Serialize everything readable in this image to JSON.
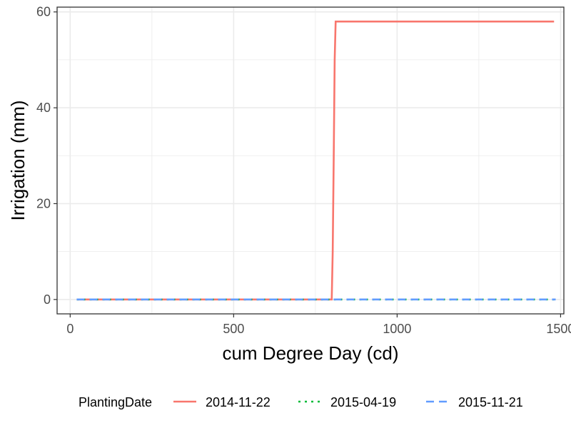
{
  "chart_data": {
    "type": "line",
    "title": "",
    "xlabel": "cum Degree Day (cd)",
    "ylabel": "Irrigation (mm)",
    "xlim": [
      -40,
      1510
    ],
    "ylim": [
      -3,
      61
    ],
    "x_ticks": [
      0,
      500,
      1000,
      1500
    ],
    "y_ticks": [
      0,
      20,
      40,
      60
    ],
    "grid": true,
    "legend": {
      "title": "PlantingDate",
      "position": "bottom"
    },
    "series": [
      {
        "name": "2014-11-22",
        "color": "#F8766D",
        "dash": "solid",
        "points": [
          [
            20,
            0
          ],
          [
            800,
            0
          ],
          [
            803,
            10
          ],
          [
            806,
            29
          ],
          [
            809,
            50
          ],
          [
            812,
            58
          ],
          [
            1480,
            58
          ]
        ]
      },
      {
        "name": "2015-04-19",
        "color": "#00BA38",
        "dash": "dotted",
        "points": [
          [
            20,
            0
          ],
          [
            1485,
            0
          ]
        ]
      },
      {
        "name": "2015-11-21",
        "color": "#619CFF",
        "dash": "dashed",
        "points": [
          [
            20,
            0
          ],
          [
            1485,
            0
          ]
        ]
      }
    ]
  }
}
